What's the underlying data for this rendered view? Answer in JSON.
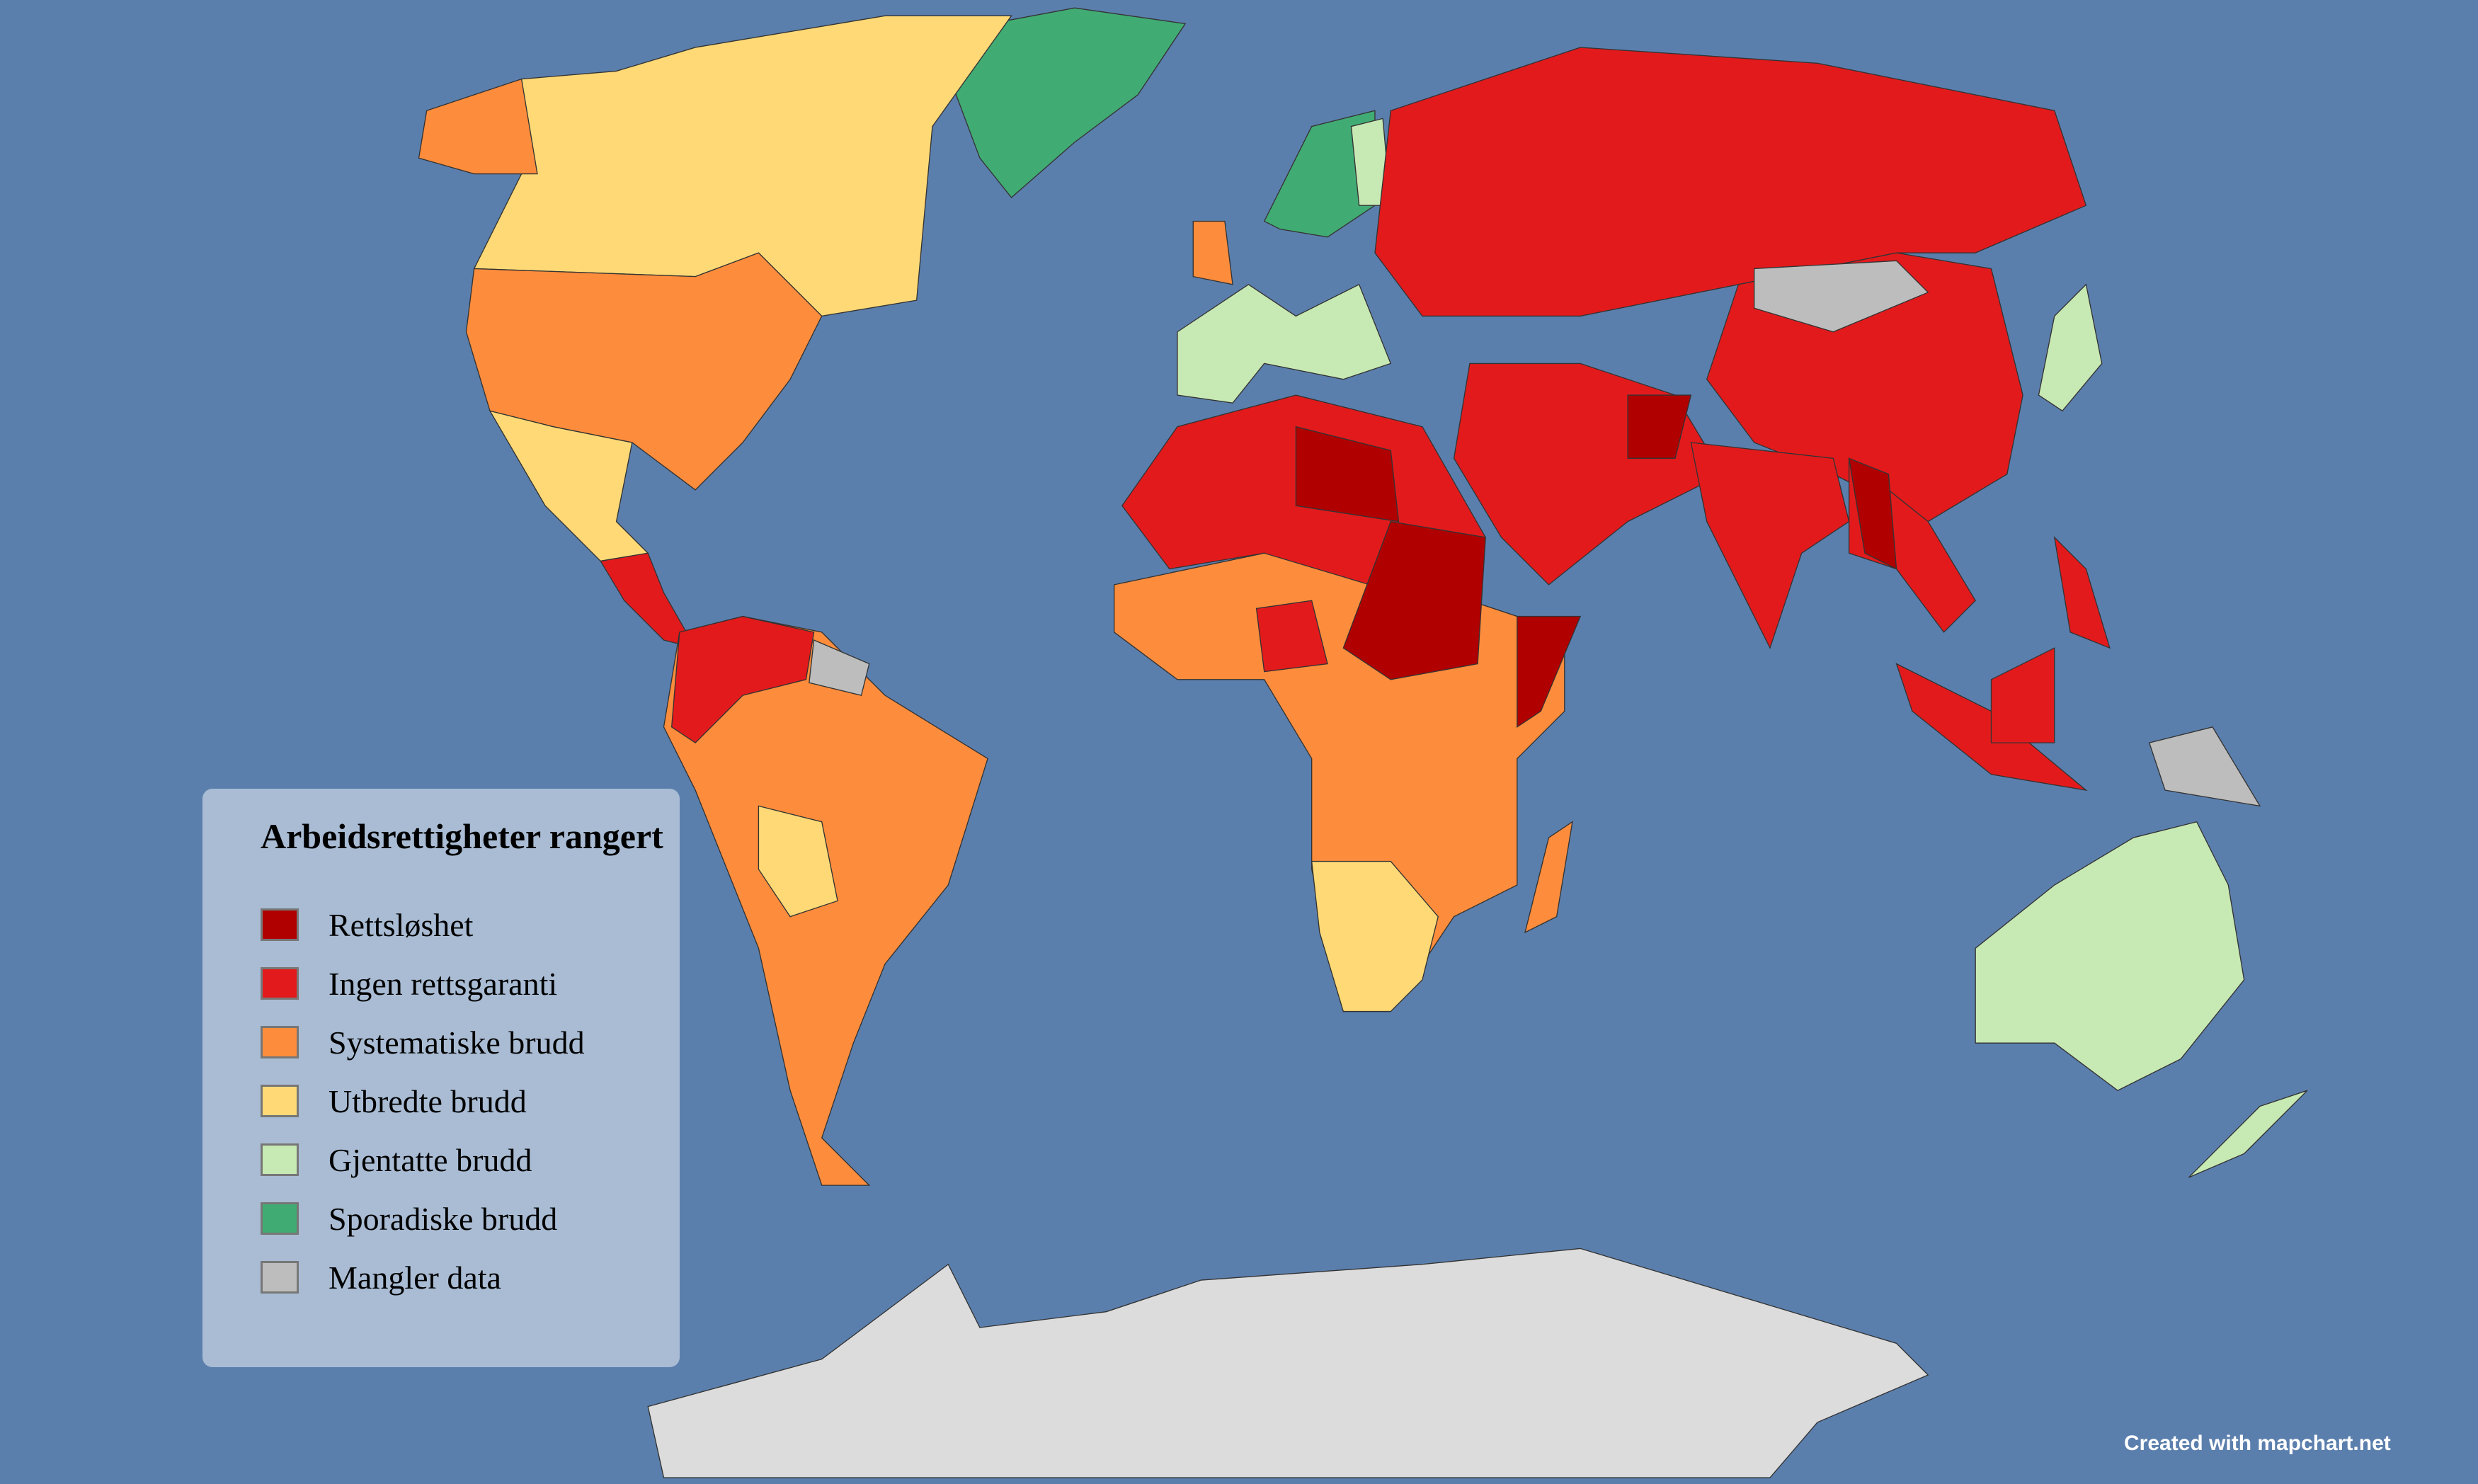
{
  "map": {
    "ocean_color": "#5b7fad",
    "legend": {
      "title": "Arbeidsrettigheter rangert",
      "items": [
        {
          "label": "Rettsløshet",
          "color": "#b10000"
        },
        {
          "label": "Ingen rettsgaranti",
          "color": "#e31a1c"
        },
        {
          "label": "Systematiske brudd",
          "color": "#fd8d3c"
        },
        {
          "label": "Utbredte brudd",
          "color": "#fed976"
        },
        {
          "label": "Gjentatte brudd",
          "color": "#c7e9b4"
        },
        {
          "label": "Sporadiske brudd",
          "color": "#41ab74"
        },
        {
          "label": "Mangler data",
          "color": "#bdbdbd"
        }
      ]
    },
    "credit": "Created with mapchart.net"
  }
}
